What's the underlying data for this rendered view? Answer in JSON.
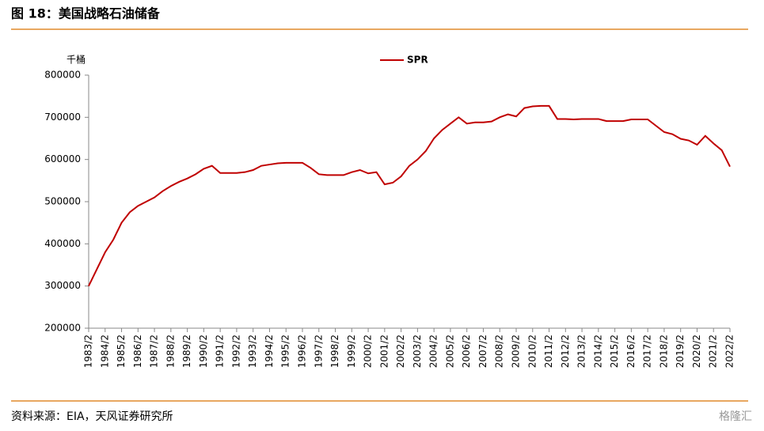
{
  "header": {
    "title": "图 18：美国战略石油储备"
  },
  "chart_data": {
    "type": "line",
    "y_unit": "千桶",
    "categories": [
      "1983/2",
      null,
      "1984/2",
      null,
      "1985/2",
      null,
      "1986/2",
      null,
      "1987/2",
      null,
      "1988/2",
      null,
      "1989/2",
      null,
      "1990/2",
      null,
      "1991/2",
      null,
      "1992/2",
      null,
      "1993/2",
      null,
      "1994/2",
      null,
      "1995/2",
      null,
      "1996/2",
      null,
      "1997/2",
      null,
      "1998/2",
      null,
      "1999/2",
      null,
      "2000/2",
      null,
      "2001/2",
      null,
      "2002/2",
      null,
      "2003/2",
      null,
      "2004/2",
      null,
      "2005/2",
      null,
      "2006/2",
      null,
      "2007/2",
      null,
      "2008/2",
      null,
      "2009/2",
      null,
      "2010/2",
      null,
      "2011/2",
      null,
      "2012/2",
      null,
      "2013/2",
      null,
      "2014/2",
      null,
      "2015/2",
      null,
      "2016/2",
      null,
      "2017/2",
      null,
      "2018/2",
      null,
      "2019/2",
      null,
      "2020/2",
      null,
      "2021/2",
      null,
      "2022/2"
    ],
    "series": [
      {
        "name": "SPR",
        "color": "#c00000",
        "values": [
          300000,
          340000,
          380000,
          410000,
          450000,
          475000,
          490000,
          500000,
          510000,
          525000,
          537000,
          547000,
          555000,
          565000,
          578000,
          585000,
          568000,
          568000,
          568000,
          570000,
          575000,
          585000,
          588000,
          591000,
          592000,
          592000,
          592000,
          580000,
          565000,
          563000,
          563000,
          563000,
          570000,
          575000,
          567000,
          570000,
          541000,
          545000,
          560000,
          585000,
          600000,
          620000,
          650000,
          670000,
          685000,
          700000,
          685000,
          688000,
          688000,
          690000,
          700000,
          707000,
          702000,
          722000,
          726000,
          727000,
          727000,
          696000,
          696000,
          695000,
          696000,
          696000,
          696000,
          691000,
          691000,
          691000,
          695000,
          695000,
          695000,
          680000,
          665000,
          660000,
          649000,
          645000,
          635000,
          656000,
          638000,
          622000,
          583000
        ]
      }
    ],
    "ylim": [
      200000,
      800000
    ],
    "yticks": [
      200000,
      300000,
      400000,
      500000,
      600000,
      700000,
      800000
    ],
    "legend": "top"
  },
  "footer": {
    "source": "资料来源：EIA，天风证券研究所",
    "watermark": "格隆汇"
  }
}
